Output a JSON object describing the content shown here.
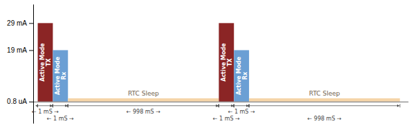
{
  "chart_data": {
    "type": "bar",
    "categories": [
      "Active Mode\nTX",
      "Active Mode\nRx",
      "RTC Sleep",
      "Active Mode\nTX",
      "Active Mode\nRx",
      "RTC Sleep"
    ],
    "x": [
      0,
      1,
      2,
      11.98,
      12.98,
      13.98
    ],
    "widths": [
      1,
      1,
      9.98,
      1,
      1,
      9.98
    ],
    "values": [
      29,
      19,
      1.2,
      29,
      19,
      1.2
    ],
    "colors": [
      "#8B2525",
      "#6B9FD4",
      "#F5D5A8",
      "#8B2525",
      "#6B9FD4",
      "#F5D5A8"
    ],
    "spans": [
      {
        "x1": 0,
        "x2": 1,
        "label": "← 1 mS →"
      },
      {
        "x1": 1,
        "x2": 2,
        "label": "← 1 mS →"
      },
      {
        "x1": 2,
        "x2": 11.98,
        "label": "← 998 mS →"
      },
      {
        "x1": 11.98,
        "x2": 12.98,
        "label": "← 1 mS →"
      },
      {
        "x1": 12.98,
        "x2": 13.98,
        "label": "← 1 mS →"
      },
      {
        "x1": 13.98,
        "x2": 23.96,
        "label": "← 998 mS →"
      }
    ],
    "xlim": [
      -0.3,
      24.5
    ],
    "ylim": [
      -8,
      36
    ],
    "yticks": [
      {
        "value": 0,
        "label": "0.8 uA"
      },
      {
        "value": 19,
        "label": "19 mA"
      },
      {
        "value": 29,
        "label": "29 mA"
      }
    ],
    "tick_labels": "y"
  }
}
